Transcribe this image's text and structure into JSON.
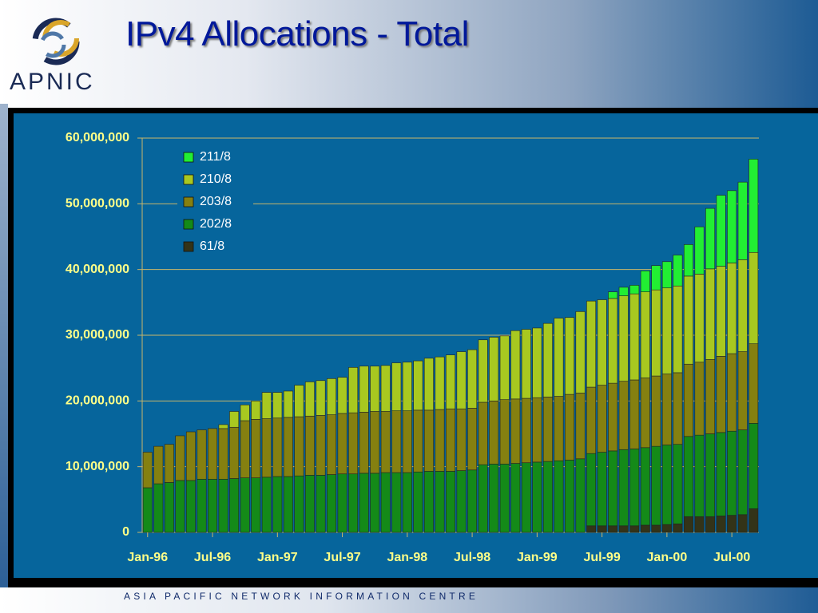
{
  "logo": "APNIC",
  "footer": "ASIA PACIFIC NETWORK INFORMATION CENTRE",
  "chart_data": {
    "type": "stacked_bar",
    "title": "IPv4 Allocations - Total",
    "categories": [
      "Jan-96",
      null,
      null,
      null,
      null,
      null,
      "Jul-96",
      null,
      null,
      null,
      null,
      null,
      "Jan-97",
      null,
      null,
      null,
      null,
      null,
      "Jul-97",
      null,
      null,
      null,
      null,
      null,
      "Jan-98",
      null,
      null,
      null,
      null,
      null,
      "Jul-98",
      null,
      null,
      null,
      null,
      null,
      "Jan-99",
      null,
      null,
      null,
      null,
      null,
      "Jul-99",
      null,
      null,
      null,
      null,
      null,
      "Jan-00",
      null,
      null,
      null,
      null,
      null,
      "Jul-00",
      null,
      null
    ],
    "ylim": [
      0,
      60000000
    ],
    "yticks": [
      0,
      {
        "value": 10000000,
        "label": "10,000,000"
      },
      {
        "value": 20000000,
        "label": "20,000,000"
      },
      {
        "value": 30000000,
        "label": "30,000,000"
      },
      {
        "value": 40000000,
        "label": "40,000,000"
      },
      {
        "value": 50000000,
        "label": "50,000,000"
      },
      {
        "value": 60000000,
        "label": "60,000,000"
      }
    ],
    "grid": true,
    "legend": "top-left",
    "series": [
      {
        "name": "211/8",
        "color": "#22ee33",
        "values": [
          0,
          0,
          0,
          0,
          0,
          0,
          0,
          0,
          0,
          0,
          0,
          0,
          0,
          0,
          0,
          0,
          0,
          0,
          0,
          0,
          0,
          0,
          0,
          0,
          0,
          0,
          0,
          0,
          0,
          0,
          0,
          0,
          0,
          0,
          0,
          0,
          0,
          0,
          0,
          0,
          0,
          0,
          0,
          1000000,
          1300000,
          1300000,
          3200000,
          3700000,
          4000000,
          4700000,
          4800000,
          7200000,
          9200000,
          10800000,
          11000000,
          11800000,
          14200000
        ]
      },
      {
        "name": "210/8",
        "color": "#a8c820",
        "values": [
          0,
          0,
          0,
          0,
          0,
          0,
          0,
          600000,
          2400000,
          2400000,
          2800000,
          4000000,
          3900000,
          4000000,
          4800000,
          5200000,
          5300000,
          5500000,
          5500000,
          6900000,
          7000000,
          6900000,
          7000000,
          7300000,
          7400000,
          7500000,
          7900000,
          8000000,
          8200000,
          8700000,
          8900000,
          9500000,
          9700000,
          9700000,
          10400000,
          10500000,
          10600000,
          11200000,
          11900000,
          11700000,
          12400000,
          13100000,
          13000000,
          12900000,
          13000000,
          13100000,
          13100000,
          13100000,
          13100000,
          13200000,
          13400000,
          13400000,
          13800000,
          13700000,
          13800000,
          14000000,
          13900000
        ]
      },
      {
        "name": "203/8",
        "color": "#858010",
        "values": [
          5400000,
          5700000,
          5800000,
          6800000,
          7400000,
          7500000,
          7700000,
          7700000,
          7800000,
          8700000,
          8900000,
          8900000,
          8900000,
          9000000,
          9000000,
          9000000,
          9100000,
          9100000,
          9200000,
          9300000,
          9300000,
          9400000,
          9300000,
          9400000,
          9400000,
          9400000,
          9300000,
          9400000,
          9500000,
          9400000,
          9400000,
          9500000,
          9600000,
          9800000,
          9800000,
          9800000,
          9800000,
          9800000,
          9800000,
          10000000,
          10000000,
          10100000,
          10200000,
          10300000,
          10400000,
          10500000,
          10600000,
          10700000,
          10800000,
          10900000,
          11000000,
          11100000,
          11300000,
          11600000,
          11800000,
          11900000,
          12100000
        ]
      },
      {
        "name": "202/8",
        "color": "#148a18",
        "values": [
          6800000,
          7400000,
          7600000,
          7900000,
          7900000,
          8100000,
          8100000,
          8100000,
          8200000,
          8300000,
          8300000,
          8400000,
          8500000,
          8500000,
          8600000,
          8700000,
          8700000,
          8800000,
          8900000,
          8900000,
          9000000,
          9000000,
          9100000,
          9100000,
          9100000,
          9200000,
          9300000,
          9300000,
          9300000,
          9400000,
          9500000,
          10300000,
          10400000,
          10400000,
          10500000,
          10600000,
          10700000,
          10800000,
          10900000,
          11000000,
          11200000,
          11000000,
          11200000,
          11400000,
          11600000,
          11700000,
          11800000,
          12000000,
          12100000,
          12100000,
          12200000,
          12400000,
          12600000,
          12700000,
          12800000,
          12900000,
          13000000
        ]
      },
      {
        "name": "61/8",
        "color": "#333318",
        "values": [
          0,
          0,
          0,
          0,
          0,
          0,
          0,
          0,
          0,
          0,
          0,
          0,
          0,
          0,
          0,
          0,
          0,
          0,
          0,
          0,
          0,
          0,
          0,
          0,
          0,
          0,
          0,
          0,
          0,
          0,
          0,
          0,
          0,
          0,
          0,
          0,
          0,
          0,
          0,
          0,
          0,
          1000000,
          1000000,
          1000000,
          1000000,
          1000000,
          1100000,
          1100000,
          1200000,
          1300000,
          2400000,
          2400000,
          2400000,
          2500000,
          2600000,
          2700000,
          3600000
        ]
      }
    ]
  }
}
